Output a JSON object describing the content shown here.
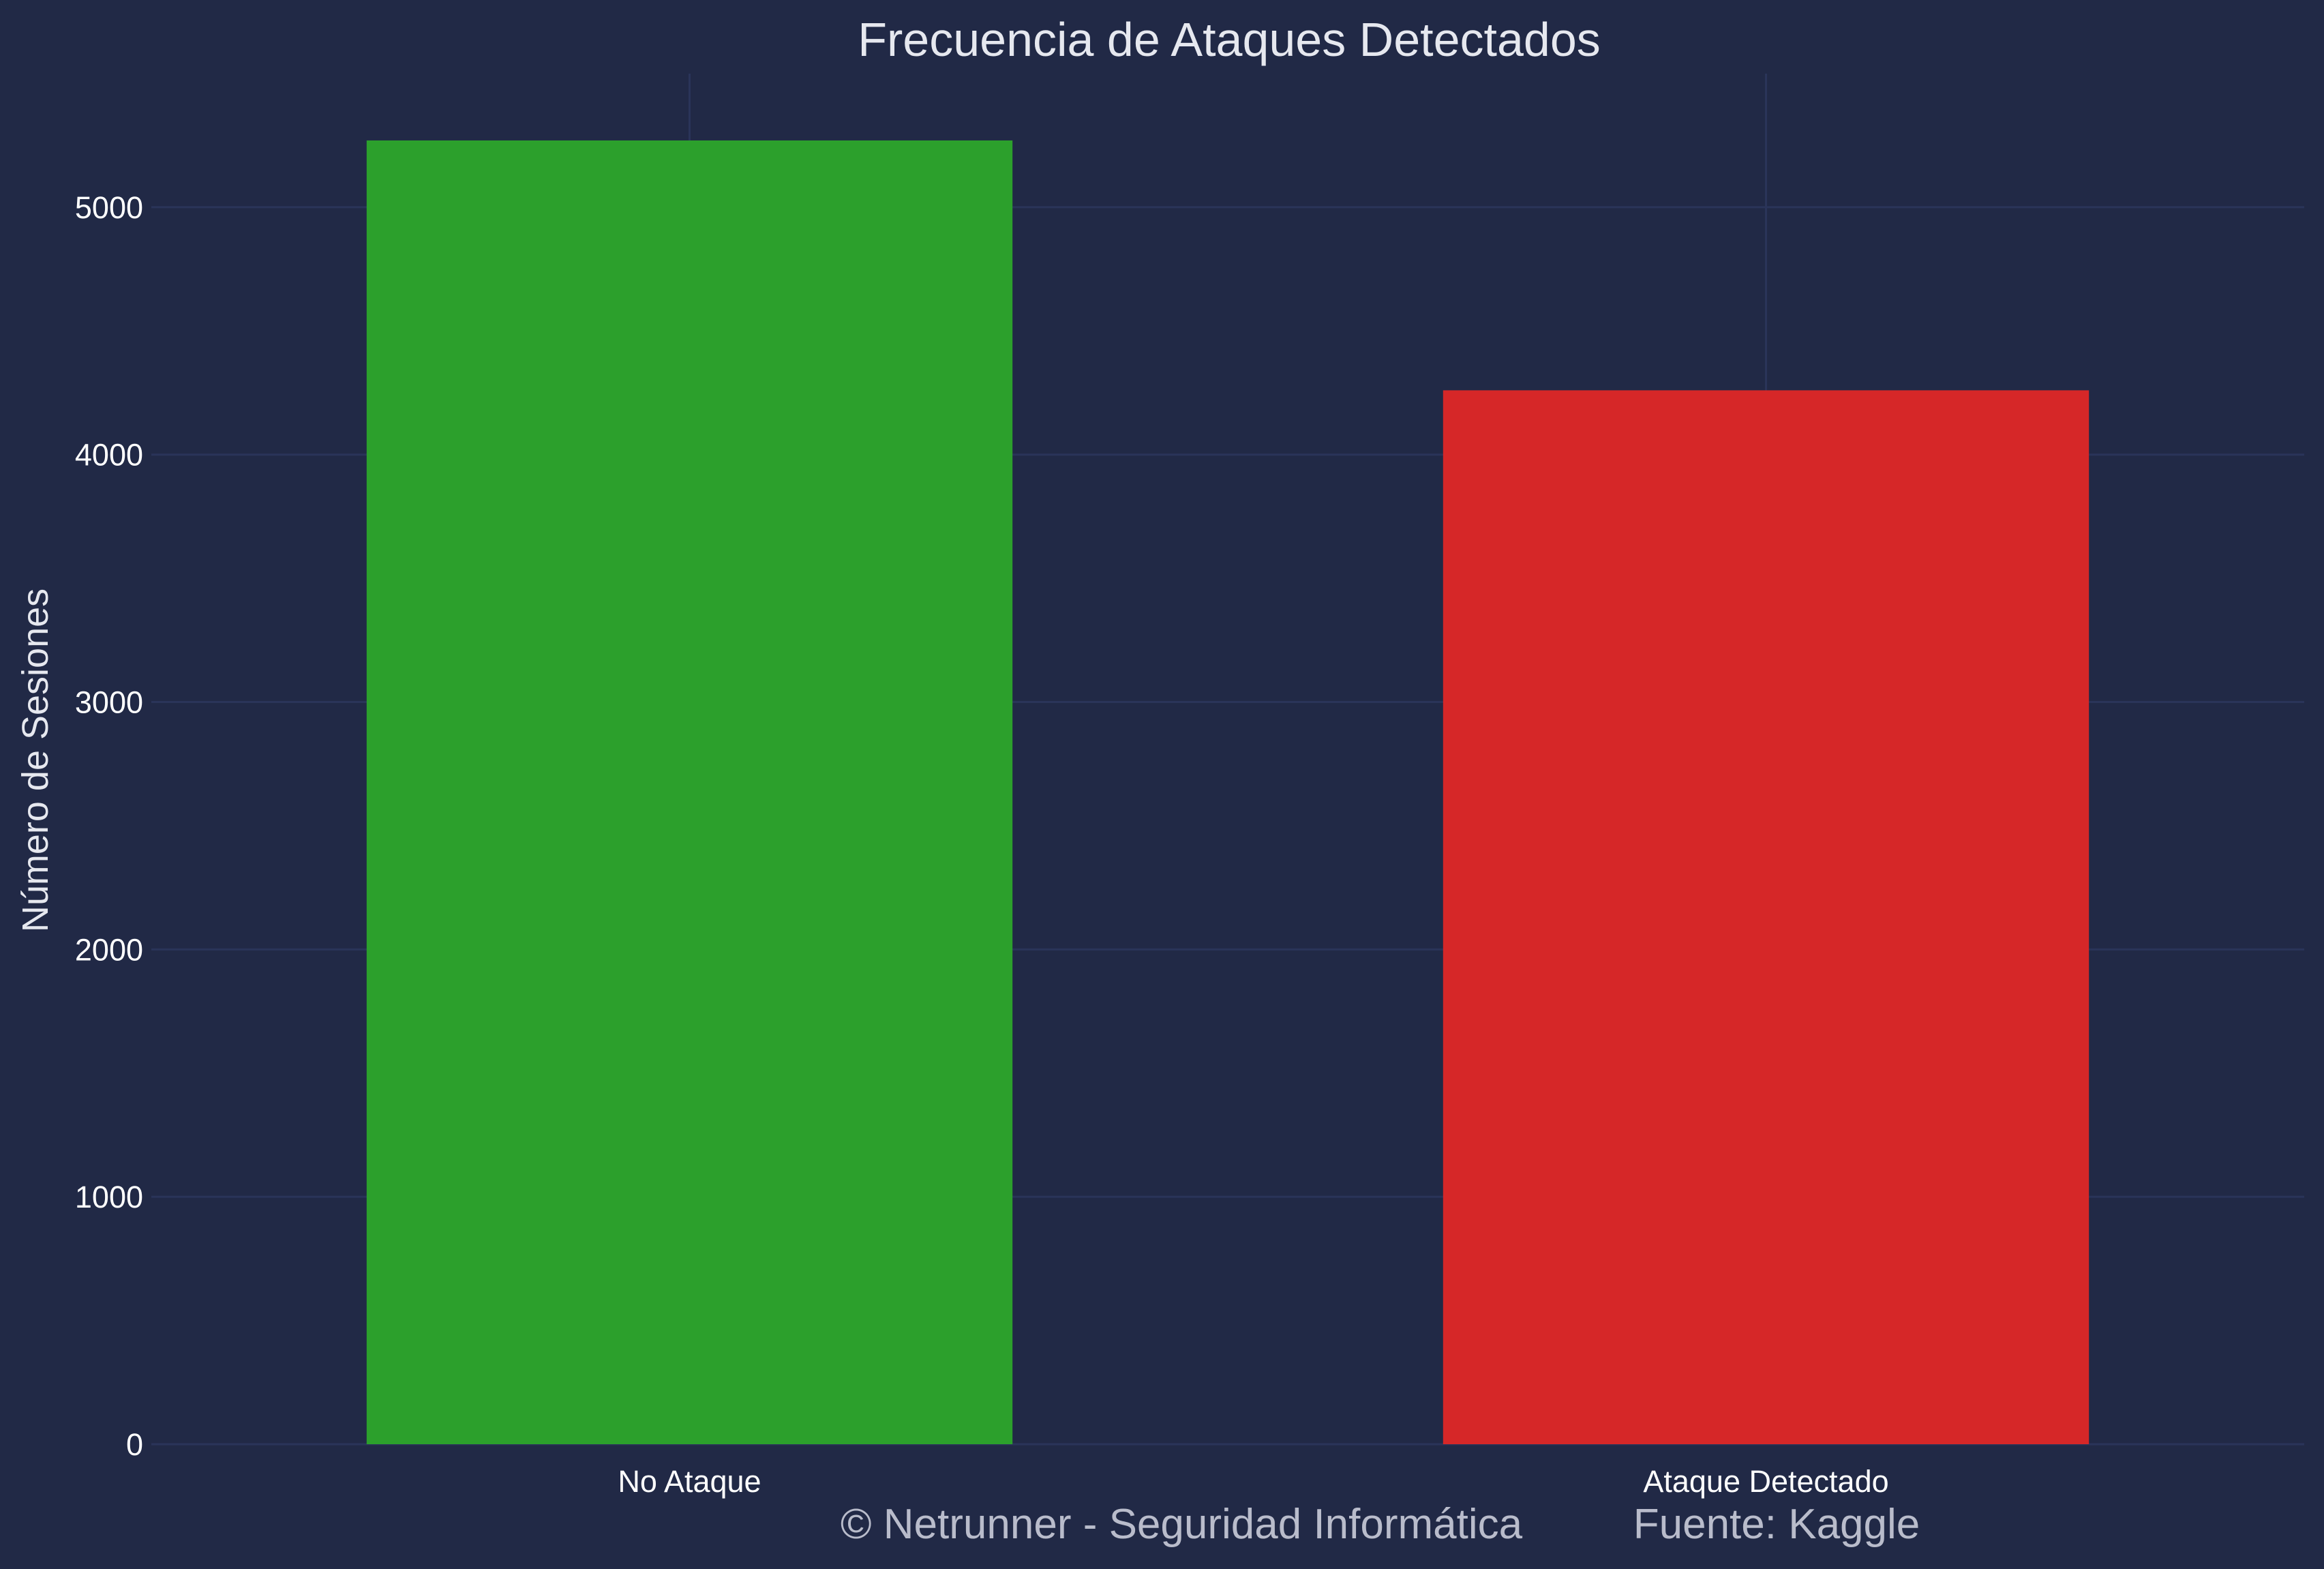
{
  "chart_data": {
    "type": "bar",
    "title": "Frecuencia de Ataques Detectados",
    "xlabel": "",
    "ylabel": "Número de Sesiones",
    "categories": [
      "No Ataque",
      "Ataque Detectado"
    ],
    "values": [
      5270,
      4260
    ],
    "bar_colors": [
      "#2ca02c",
      "#d62728"
    ],
    "ylim": [
      0,
      5540
    ],
    "yticks": [
      0,
      1000,
      2000,
      3000,
      4000,
      5000
    ],
    "grid": true,
    "legend": "none",
    "background_color": "#212946",
    "grid_color": "#2a3459"
  },
  "footer": {
    "copyright": "© Netrunner - Seguridad Informática",
    "source": "Fuente: Kaggle"
  }
}
